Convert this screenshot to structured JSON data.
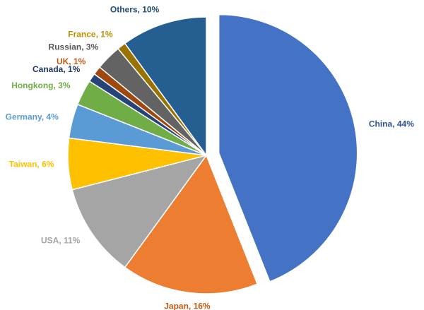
{
  "chart_data": {
    "type": "pie",
    "categories": [
      "China",
      "Japan",
      "USA",
      "Taiwan",
      "Germany",
      "Hongkong",
      "Canada",
      "UK",
      "Russian",
      "France",
      "Others"
    ],
    "values": [
      44,
      16,
      11,
      6,
      4,
      3,
      1,
      1,
      3,
      1,
      10
    ],
    "value_labels": [
      "China, 44%",
      "Japan, 16%",
      "USA, 11%",
      "Taiwan, 6%",
      "Germany, 4%",
      "Hongkong, 3%",
      "Canada, 1%",
      "UK, 1%",
      "Russian, 3%",
      "France,  1%",
      "Others, 10%"
    ],
    "colors": [
      "#4472c4",
      "#ed7d31",
      "#a5a5a5",
      "#ffc000",
      "#5b9bd5",
      "#70ad47",
      "#264478",
      "#9e480e",
      "#636363",
      "#997300",
      "#255e91"
    ],
    "label_colors": [
      "#2f5597",
      "#c55a11",
      "#a5a5a5",
      "#ffc000",
      "#5b9bd5",
      "#70ad47",
      "#1f3864",
      "#c55a11",
      "#595959",
      "#bf9000",
      "#1f4e79"
    ]
  }
}
